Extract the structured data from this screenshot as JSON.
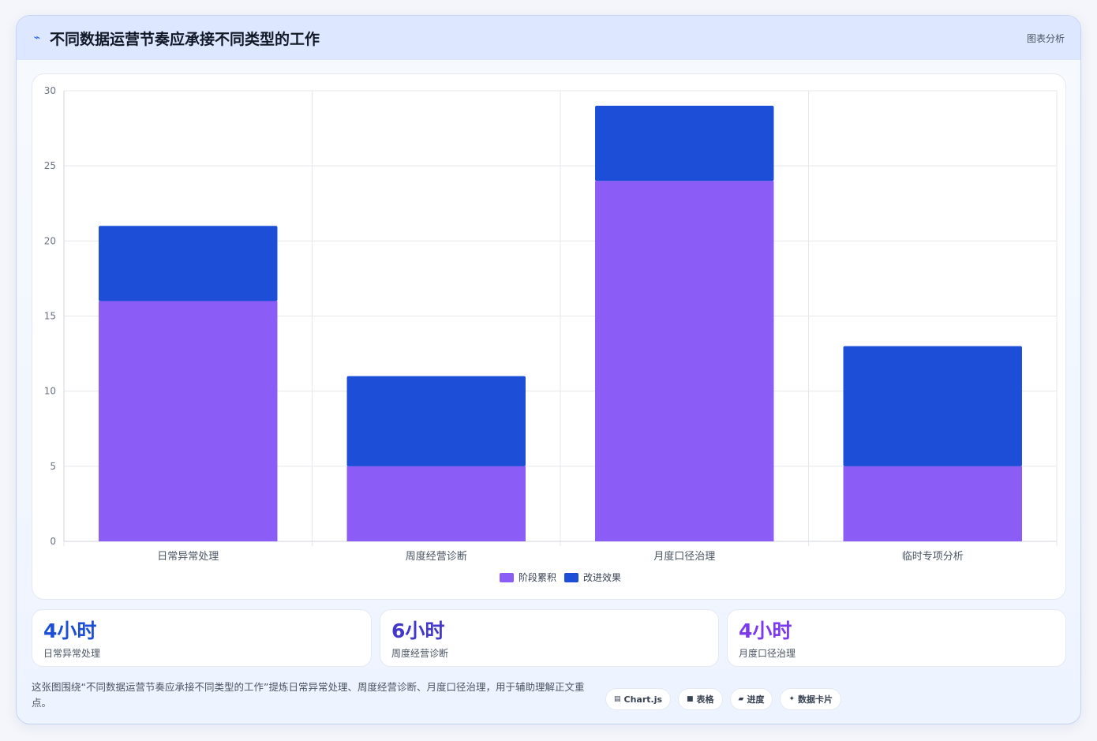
{
  "header": {
    "icon": "pulse-icon",
    "title": "不同数据运营节奏应承接不同类型的工作",
    "tag": "图表分析"
  },
  "chart_data": {
    "type": "bar",
    "stacked": true,
    "categories": [
      "日常异常处理",
      "周度经营诊断",
      "月度口径治理",
      "临时专项分析"
    ],
    "series": [
      {
        "name": "阶段累积",
        "values": [
          16,
          5,
          24,
          5
        ],
        "color": "#8b5cf6"
      },
      {
        "name": "改进效果",
        "values": [
          5,
          6,
          5,
          8
        ],
        "color": "#1d4ed8"
      }
    ],
    "ylim": [
      0,
      30
    ],
    "yticks": [
      0,
      5,
      10,
      15,
      20,
      25,
      30
    ],
    "grid": true,
    "legend": "bottom"
  },
  "stats": [
    {
      "value": "4小时",
      "label": "日常异常处理",
      "color": "#1d4ed8"
    },
    {
      "value": "6小时",
      "label": "周度经营诊断",
      "color": "#4338ca"
    },
    {
      "value": "4小时",
      "label": "月度口径治理",
      "color": "#7c3aed"
    }
  ],
  "footer": {
    "text": "这张图围绕“不同数据运营节奏应承接不同类型的工作”提炼日常异常处理、周度经营诊断、月度口径治理，用于辅助理解正文重点。",
    "chips": [
      {
        "icon": "▤",
        "label": "Chart.js"
      },
      {
        "icon": "■",
        "label": "表格"
      },
      {
        "icon": "▰",
        "label": "进度"
      },
      {
        "icon": "✦",
        "label": "数据卡片"
      }
    ]
  }
}
